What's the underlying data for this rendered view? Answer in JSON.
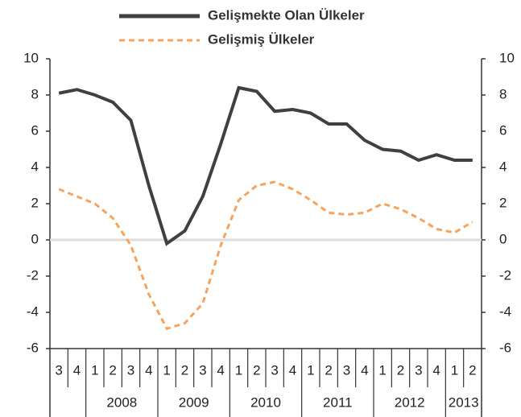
{
  "chart_data": {
    "type": "line",
    "categories": [
      "3",
      "4",
      "1",
      "2",
      "3",
      "4",
      "1",
      "2",
      "3",
      "4",
      "1",
      "2",
      "3",
      "4",
      "1",
      "2",
      "3",
      "4",
      "1",
      "2",
      "3",
      "4",
      "1",
      "2"
    ],
    "year_categories": [
      null,
      null,
      "2008",
      null,
      null,
      null,
      "2009",
      null,
      null,
      null,
      "2010",
      null,
      null,
      null,
      "2011",
      null,
      null,
      null,
      "2012",
      null,
      null,
      null,
      "2013",
      null
    ],
    "series": [
      {
        "name": "Gelişmekte Olan Ülkeler",
        "color": "#404040",
        "dashed": false,
        "values": [
          8.1,
          8.3,
          8.0,
          7.6,
          6.6,
          3.0,
          -0.2,
          0.5,
          2.4,
          5.3,
          8.4,
          8.2,
          7.1,
          7.2,
          7.0,
          6.4,
          6.4,
          5.5,
          5.0,
          4.9,
          4.4,
          4.7,
          4.4,
          4.4
        ]
      },
      {
        "name": "Gelişmiş Ülkeler",
        "color": "#f4a460",
        "dashed": true,
        "values": [
          2.8,
          2.4,
          2.0,
          1.2,
          -0.3,
          -3.0,
          -4.9,
          -4.6,
          -3.5,
          -0.3,
          2.2,
          3.0,
          3.2,
          2.8,
          2.2,
          1.5,
          1.4,
          1.5,
          2.0,
          1.7,
          1.2,
          0.6,
          0.4,
          1.0
        ]
      }
    ],
    "ylim": [
      -6,
      10
    ],
    "yticks": [
      -6,
      -4,
      -2,
      0,
      2,
      4,
      6,
      8,
      10
    ],
    "y2lim": [
      -6,
      10
    ],
    "y2ticks": [
      -6,
      -4,
      -2,
      0,
      2,
      4,
      6,
      8,
      10
    ],
    "zero_line": true
  }
}
